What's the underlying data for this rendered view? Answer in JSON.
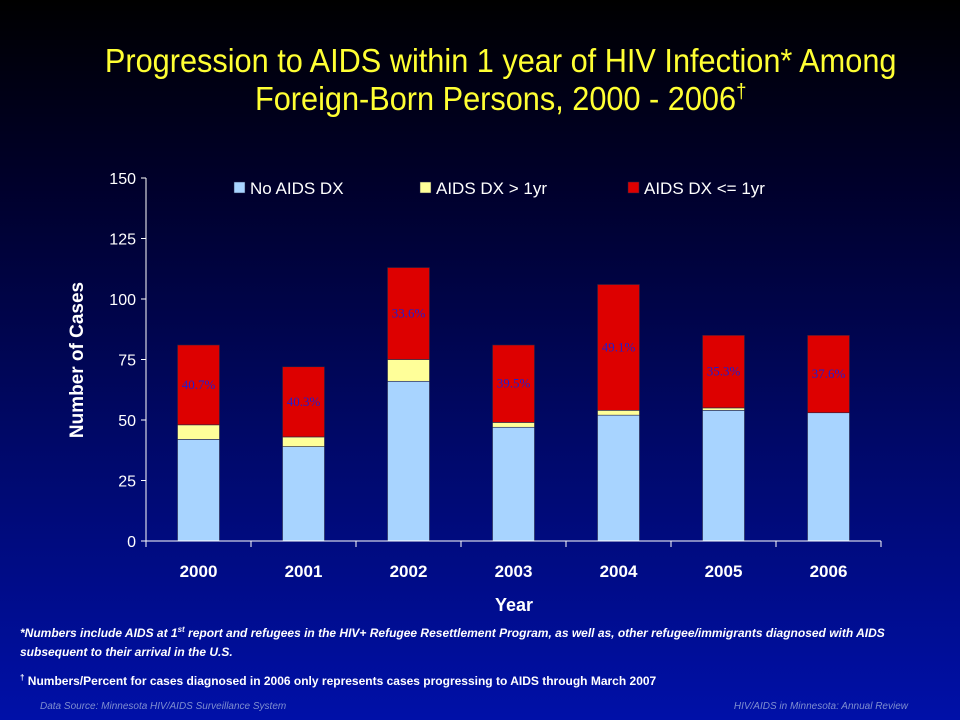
{
  "slide": {
    "title_line1": "Progression to AIDS within 1 year of HIV Infection* Among",
    "title_line2": "Foreign-Born Persons, 2000 - 2006",
    "title_dagger": "†",
    "footnote1_a": "*Numbers include AIDS at 1",
    "footnote1_sup": "st",
    "footnote1_b": " report and refugees in the HIV+ Refugee Resettlement Program, as well as, other refugee/immigrants diagnosed with AIDS subsequent to their arrival in the U.S.",
    "footnote2_dagger": "†",
    "footnote2": " Numbers/Percent for cases diagnosed in 2006 only represents cases progressing to AIDS through March 2007",
    "source_left": "Data Source: Minnesota HIV/AIDS Surveillance System",
    "source_right": "HIV/AIDS in Minnesota: Annual Review"
  },
  "colors": {
    "title": "#ffff33",
    "no_aids": "#a8d4ff",
    "aids_gt_1yr": "#ffff99",
    "aids_le_1yr": "#dd0000",
    "axis_text": "#ffffff",
    "percent_label": "#1f1fcf"
  },
  "chart_data": {
    "type": "bar",
    "stacked": true,
    "title": "Progression to AIDS within 1 year of HIV Infection* Among Foreign-Born Persons, 2000 - 2006†",
    "xlabel": "Year",
    "ylabel": "Number of Cases",
    "ylim": [
      0,
      150
    ],
    "yticks": [
      0,
      25,
      50,
      75,
      100,
      125,
      150
    ],
    "categories": [
      "2000",
      "2001",
      "2002",
      "2003",
      "2004",
      "2005",
      "2006"
    ],
    "series": [
      {
        "name": "No AIDS DX",
        "values": [
          42,
          39,
          66,
          47,
          52,
          54,
          53
        ]
      },
      {
        "name": "AIDS DX > 1yr",
        "values": [
          6,
          4,
          9,
          2,
          2,
          1,
          0
        ]
      },
      {
        "name": "AIDS DX <= 1yr",
        "values": [
          33,
          29,
          38,
          32,
          52,
          30,
          32
        ]
      }
    ],
    "percent_labels": [
      "40.7%",
      "40.3%",
      "33.6%",
      "39.5%",
      "49.1%",
      "35.3%",
      "37.6%"
    ],
    "legend_position": "top",
    "grid": false
  }
}
